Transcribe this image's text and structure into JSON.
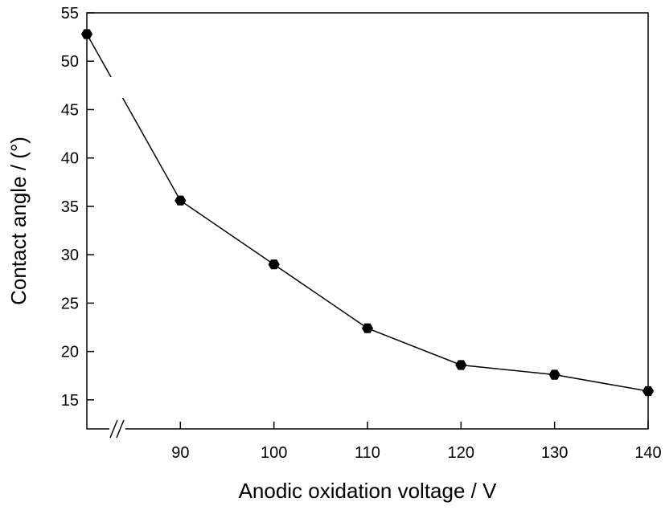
{
  "chart_data": {
    "type": "line",
    "title": "",
    "xlabel": "Anodic oxidation voltage / V",
    "ylabel": "Contact angle / (°)",
    "xlim": [
      80,
      140
    ],
    "ylim": [
      12,
      55
    ],
    "x_axis_break": true,
    "xticks": [
      90,
      100,
      110,
      120,
      130,
      140
    ],
    "yticks": [
      15,
      20,
      25,
      30,
      35,
      40,
      45,
      50,
      55
    ],
    "grid": false,
    "legend": "none",
    "colors": {
      "line": "#000000",
      "marker": "#000000"
    },
    "series": [
      {
        "x": [
          80,
          90,
          100,
          110,
          120,
          130,
          140
        ],
        "y": [
          52.8,
          35.6,
          29.0,
          22.4,
          18.6,
          17.6,
          15.9
        ]
      }
    ]
  }
}
